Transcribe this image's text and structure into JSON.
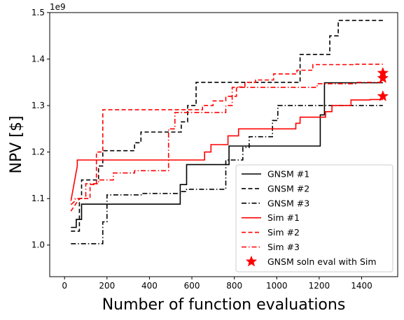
{
  "chart_data": {
    "type": "line",
    "title": "",
    "xlabel": "Number of function evaluations",
    "ylabel": "NPV [$]",
    "y_offset_label": "1e9",
    "xlim": [
      -70,
      1570
    ],
    "ylim": [
      0.932,
      1.5
    ],
    "xticks": [
      0,
      200,
      400,
      600,
      800,
      1000,
      1200,
      1400
    ],
    "xtick_labels": [
      "0",
      "200",
      "400",
      "600",
      "800",
      "1000",
      "1200",
      "1400"
    ],
    "yticks": [
      1.0,
      1.1,
      1.2,
      1.3,
      1.4,
      1.5
    ],
    "ytick_labels": [
      "1.0",
      "1.1",
      "1.2",
      "1.3",
      "1.4",
      "1.5"
    ],
    "grid": false,
    "legend_position": "lower-right",
    "series": [
      {
        "name": "GNSM #1",
        "color": "#000000",
        "dash": "solid",
        "x": [
          30,
          55,
          55,
          80,
          80,
          545,
          545,
          575,
          575,
          775,
          775,
          1205,
          1205,
          1225,
          1225,
          1500
        ],
        "y": [
          1.038,
          1.038,
          1.055,
          1.055,
          1.088,
          1.088,
          1.13,
          1.13,
          1.173,
          1.173,
          1.213,
          1.213,
          1.28,
          1.28,
          1.349,
          1.349
        ]
      },
      {
        "name": "GNSM #2",
        "color": "#000000",
        "dash": "dashed",
        "x": [
          30,
          70,
          70,
          80,
          80,
          160,
          160,
          180,
          180,
          330,
          330,
          360,
          360,
          550,
          550,
          580,
          580,
          620,
          620,
          640,
          640,
          1110,
          1110,
          1130,
          1130,
          1250,
          1250,
          1290,
          1290,
          1500
        ],
        "y": [
          1.03,
          1.03,
          1.1,
          1.1,
          1.14,
          1.14,
          1.17,
          1.17,
          1.203,
          1.203,
          1.22,
          1.22,
          1.243,
          1.243,
          1.265,
          1.265,
          1.3,
          1.3,
          1.35,
          1.35,
          1.35,
          1.35,
          1.41,
          1.41,
          1.41,
          1.41,
          1.45,
          1.45,
          1.483,
          1.483
        ]
      },
      {
        "name": "GNSM #3",
        "color": "#000000",
        "dash": "dashdot",
        "x": [
          30,
          180,
          180,
          200,
          200,
          370,
          370,
          545,
          545,
          575,
          575,
          760,
          760,
          840,
          840,
          870,
          870,
          980,
          980,
          1005,
          1005,
          1020,
          1020,
          1500
        ],
        "y": [
          1.003,
          1.003,
          1.05,
          1.05,
          1.108,
          1.108,
          1.111,
          1.111,
          1.115,
          1.115,
          1.12,
          1.12,
          1.183,
          1.183,
          1.21,
          1.21,
          1.233,
          1.233,
          1.268,
          1.268,
          1.3,
          1.3,
          1.3,
          1.3
        ]
      },
      {
        "name": "Sim #1",
        "color": "#ff0000",
        "dash": "solid",
        "x": [
          30,
          60,
          60,
          660,
          660,
          690,
          690,
          770,
          770,
          820,
          820,
          1090,
          1090,
          1110,
          1110,
          1230,
          1230,
          1260,
          1260,
          1350,
          1350,
          1440,
          1440,
          1500
        ],
        "y": [
          1.095,
          1.17,
          1.183,
          1.183,
          1.2,
          1.2,
          1.216,
          1.216,
          1.235,
          1.235,
          1.25,
          1.25,
          1.262,
          1.262,
          1.275,
          1.275,
          1.287,
          1.287,
          1.3,
          1.3,
          1.312,
          1.312,
          1.313,
          1.313
        ]
      },
      {
        "name": "Sim #2",
        "color": "#ff0000",
        "dash": "dashed",
        "x": [
          30,
          70,
          70,
          120,
          120,
          150,
          150,
          180,
          180,
          650,
          650,
          700,
          700,
          760,
          760,
          810,
          810,
          850,
          850,
          900,
          900,
          985,
          985,
          1095,
          1095,
          1170,
          1170,
          1360,
          1360,
          1500
        ],
        "y": [
          1.073,
          1.1,
          1.1,
          1.1,
          1.13,
          1.13,
          1.2,
          1.2,
          1.291,
          1.291,
          1.3,
          1.3,
          1.31,
          1.31,
          1.32,
          1.32,
          1.34,
          1.34,
          1.35,
          1.35,
          1.355,
          1.355,
          1.368,
          1.368,
          1.376,
          1.376,
          1.388,
          1.388,
          1.389,
          1.389
        ]
      },
      {
        "name": "Sim #3",
        "color": "#ff0000",
        "dash": "dashdot",
        "x": [
          30,
          50,
          50,
          100,
          100,
          160,
          160,
          230,
          230,
          330,
          330,
          490,
          490,
          520,
          520,
          760,
          760,
          790,
          790,
          1190,
          1190,
          1380,
          1380,
          1500
        ],
        "y": [
          1.087,
          1.095,
          1.1,
          1.1,
          1.132,
          1.132,
          1.14,
          1.14,
          1.155,
          1.155,
          1.16,
          1.16,
          1.25,
          1.25,
          1.285,
          1.285,
          1.3,
          1.3,
          1.339,
          1.339,
          1.347,
          1.347,
          1.35,
          1.35
        ]
      }
    ],
    "markers": {
      "name": "GNSM soln eval with Sim",
      "color": "#ff0000",
      "symbol": "star",
      "points": [
        {
          "x": 1500,
          "y": 1.37
        },
        {
          "x": 1500,
          "y": 1.359
        },
        {
          "x": 1500,
          "y": 1.32
        }
      ]
    }
  }
}
